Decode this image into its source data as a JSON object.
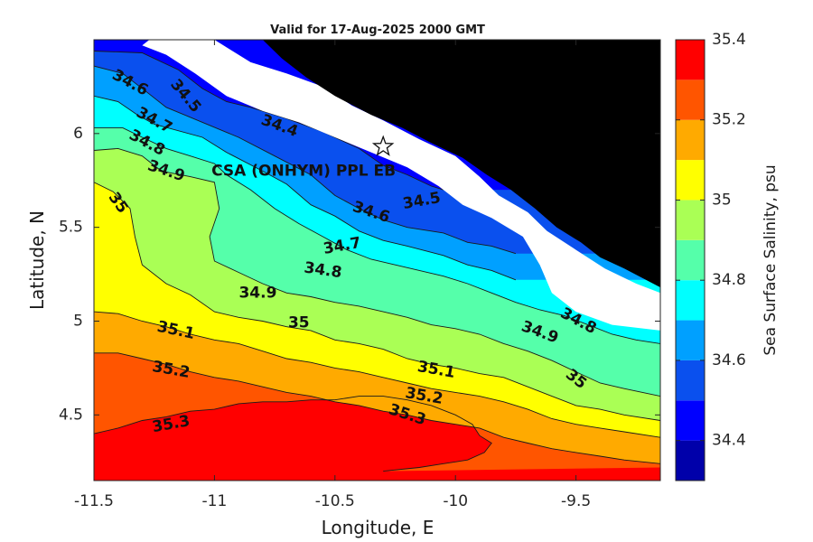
{
  "chart_data": {
    "type": "heatmap",
    "title": "Valid for 17-Aug-2025 2000 GMT",
    "xlabel": "Longitude, E",
    "ylabel": "Latitude, N",
    "xlim": [
      -11.5,
      -9.15
    ],
    "ylim": [
      4.15,
      6.5
    ],
    "x_ticks": [
      -11.5,
      -11,
      -10.5,
      -10,
      -9.5
    ],
    "y_ticks": [
      4.5,
      5,
      5.5,
      6
    ],
    "x_tick_labels": [
      "-11.5",
      "-11",
      "-10.5",
      "-10",
      "-9.5"
    ],
    "y_tick_labels": [
      "4.5",
      "5",
      "5.5",
      "6"
    ],
    "grid": false,
    "colorbar": {
      "label": "Sea Surface Salinity, psu",
      "levels": [
        34.3,
        34.4,
        34.5,
        34.6,
        34.7,
        34.8,
        34.9,
        35.0,
        35.1,
        35.2,
        35.3,
        35.4
      ],
      "tick_values": [
        34.4,
        34.6,
        34.8,
        35.0,
        35.2,
        35.4
      ],
      "tick_labels": [
        "34.4",
        "34.6",
        "34.8",
        "35",
        "35.2",
        "35.4"
      ],
      "colors": [
        "#0000aa",
        "#0000ff",
        "#0a50ee",
        "#00a0ff",
        "#00ffff",
        "#55ffaa",
        "#aaff55",
        "#ffff00",
        "#ffaa00",
        "#ff5500",
        "#ff0000"
      ]
    },
    "land_color": "#000000",
    "nodata_color": "#ffffff",
    "isolines": [
      {
        "level": 34.5,
        "label": "34.5",
        "points": [
          [
            -11.5,
            6.44
          ],
          [
            -11.3,
            6.43
          ],
          [
            -11.15,
            6.34
          ],
          [
            -11.05,
            6.24
          ],
          [
            -10.95,
            6.17
          ],
          [
            -10.85,
            6.14
          ],
          [
            -10.7,
            6.08
          ],
          [
            -10.55,
            6.01
          ],
          [
            -10.4,
            5.92
          ],
          [
            -10.3,
            5.83
          ],
          [
            -10.2,
            5.78
          ],
          [
            -10.1,
            5.72
          ],
          [
            -10.05,
            5.7
          ]
        ]
      },
      {
        "level": 34.6,
        "label": "34.6",
        "points": [
          [
            -11.5,
            6.36
          ],
          [
            -11.38,
            6.32
          ],
          [
            -11.27,
            6.21
          ],
          [
            -11.2,
            6.14
          ],
          [
            -11.05,
            6.06
          ],
          [
            -10.9,
            5.98
          ],
          [
            -10.75,
            5.88
          ],
          [
            -10.6,
            5.78
          ],
          [
            -10.5,
            5.67
          ],
          [
            -10.4,
            5.6
          ],
          [
            -10.3,
            5.54
          ],
          [
            -10.2,
            5.5
          ],
          [
            -10.05,
            5.47
          ],
          [
            -9.95,
            5.42
          ],
          [
            -9.85,
            5.4
          ],
          [
            -9.75,
            5.36
          ]
        ]
      },
      {
        "level": 34.7,
        "label": "34.7",
        "points": [
          [
            -11.5,
            6.2
          ],
          [
            -11.4,
            6.17
          ],
          [
            -11.32,
            6.1
          ],
          [
            -11.25,
            6.05
          ],
          [
            -11.05,
            5.98
          ],
          [
            -10.95,
            5.9
          ],
          [
            -10.8,
            5.8
          ],
          [
            -10.7,
            5.73
          ],
          [
            -10.6,
            5.62
          ],
          [
            -10.5,
            5.56
          ],
          [
            -10.4,
            5.48
          ],
          [
            -10.3,
            5.43
          ],
          [
            -10.2,
            5.4
          ],
          [
            -10.05,
            5.35
          ],
          [
            -9.95,
            5.3
          ],
          [
            -9.85,
            5.27
          ],
          [
            -9.75,
            5.22
          ]
        ]
      },
      {
        "level": 34.8,
        "label": "34.8",
        "points": [
          [
            -11.5,
            6.03
          ],
          [
            -11.38,
            6.03
          ],
          [
            -11.3,
            5.98
          ],
          [
            -11.2,
            5.92
          ],
          [
            -11.1,
            5.88
          ],
          [
            -11.0,
            5.84
          ],
          [
            -10.95,
            5.78
          ],
          [
            -10.85,
            5.7
          ],
          [
            -10.75,
            5.6
          ],
          [
            -10.65,
            5.52
          ],
          [
            -10.55,
            5.45
          ],
          [
            -10.45,
            5.38
          ],
          [
            -10.35,
            5.33
          ],
          [
            -10.25,
            5.3
          ],
          [
            -10.15,
            5.27
          ],
          [
            -10.05,
            5.24
          ],
          [
            -9.95,
            5.2
          ],
          [
            -9.85,
            5.15
          ],
          [
            -9.75,
            5.1
          ],
          [
            -9.65,
            5.06
          ],
          [
            -9.55,
            5.03
          ],
          [
            -9.45,
            4.98
          ],
          [
            -9.35,
            4.93
          ],
          [
            -9.25,
            4.9
          ],
          [
            -9.15,
            4.88
          ]
        ]
      },
      {
        "level": 34.9,
        "label": "34.9",
        "points": [
          [
            -11.5,
            5.91
          ],
          [
            -11.4,
            5.92
          ],
          [
            -11.3,
            5.88
          ],
          [
            -11.22,
            5.8
          ],
          [
            -11.1,
            5.77
          ],
          [
            -11.0,
            5.74
          ],
          [
            -10.98,
            5.6
          ],
          [
            -11.02,
            5.45
          ],
          [
            -11.0,
            5.32
          ],
          [
            -10.9,
            5.26
          ],
          [
            -10.8,
            5.2
          ],
          [
            -10.7,
            5.15
          ],
          [
            -10.6,
            5.13
          ],
          [
            -10.5,
            5.1
          ],
          [
            -10.4,
            5.08
          ],
          [
            -10.3,
            5.05
          ],
          [
            -10.2,
            5.02
          ],
          [
            -10.1,
            4.98
          ],
          [
            -10.0,
            4.96
          ],
          [
            -9.9,
            4.93
          ],
          [
            -9.8,
            4.88
          ],
          [
            -9.7,
            4.84
          ],
          [
            -9.6,
            4.79
          ],
          [
            -9.5,
            4.73
          ],
          [
            -9.4,
            4.67
          ],
          [
            -9.3,
            4.64
          ],
          [
            -9.15,
            4.6
          ]
        ]
      },
      {
        "level": 35.0,
        "label": "35",
        "points": [
          [
            -11.5,
            5.74
          ],
          [
            -11.42,
            5.69
          ],
          [
            -11.35,
            5.6
          ],
          [
            -11.33,
            5.45
          ],
          [
            -11.3,
            5.3
          ],
          [
            -11.2,
            5.2
          ],
          [
            -11.1,
            5.14
          ],
          [
            -11.0,
            5.05
          ],
          [
            -10.9,
            5.02
          ],
          [
            -10.8,
            5.0
          ],
          [
            -10.7,
            4.97
          ],
          [
            -10.6,
            4.95
          ],
          [
            -10.5,
            4.9
          ],
          [
            -10.4,
            4.88
          ],
          [
            -10.3,
            4.85
          ],
          [
            -10.2,
            4.8
          ],
          [
            -10.1,
            4.77
          ],
          [
            -10.0,
            4.75
          ],
          [
            -9.9,
            4.72
          ],
          [
            -9.8,
            4.7
          ],
          [
            -9.7,
            4.65
          ],
          [
            -9.6,
            4.6
          ],
          [
            -9.5,
            4.55
          ],
          [
            -9.4,
            4.53
          ],
          [
            -9.3,
            4.5
          ],
          [
            -9.15,
            4.47
          ]
        ]
      },
      {
        "level": 35.1,
        "label": "35.1",
        "points": [
          [
            -11.5,
            5.05
          ],
          [
            -11.4,
            5.04
          ],
          [
            -11.3,
            5.0
          ],
          [
            -11.2,
            4.97
          ],
          [
            -11.1,
            4.93
          ],
          [
            -11.0,
            4.9
          ],
          [
            -10.9,
            4.88
          ],
          [
            -10.8,
            4.84
          ],
          [
            -10.7,
            4.8
          ],
          [
            -10.6,
            4.78
          ],
          [
            -10.5,
            4.75
          ],
          [
            -10.4,
            4.73
          ],
          [
            -10.3,
            4.7
          ],
          [
            -10.2,
            4.67
          ],
          [
            -10.1,
            4.64
          ],
          [
            -10.0,
            4.62
          ],
          [
            -9.9,
            4.6
          ],
          [
            -9.8,
            4.57
          ],
          [
            -9.7,
            4.53
          ],
          [
            -9.6,
            4.48
          ],
          [
            -9.5,
            4.45
          ],
          [
            -9.4,
            4.43
          ],
          [
            -9.3,
            4.41
          ],
          [
            -9.15,
            4.38
          ]
        ]
      },
      {
        "level": 35.2,
        "label": "35.2",
        "points": [
          [
            -11.5,
            4.83
          ],
          [
            -11.4,
            4.83
          ],
          [
            -11.3,
            4.8
          ],
          [
            -11.2,
            4.77
          ],
          [
            -11.1,
            4.73
          ],
          [
            -11.0,
            4.7
          ],
          [
            -10.9,
            4.68
          ],
          [
            -10.8,
            4.65
          ],
          [
            -10.7,
            4.62
          ],
          [
            -10.6,
            4.6
          ],
          [
            -10.5,
            4.57
          ],
          [
            -10.4,
            4.55
          ],
          [
            -10.3,
            4.52
          ],
          [
            -10.2,
            4.5
          ],
          [
            -10.1,
            4.47
          ],
          [
            -10.0,
            4.45
          ],
          [
            -9.9,
            4.43
          ],
          [
            -9.8,
            4.38
          ],
          [
            -9.7,
            4.35
          ],
          [
            -9.6,
            4.32
          ],
          [
            -9.5,
            4.3
          ],
          [
            -9.4,
            4.28
          ],
          [
            -9.3,
            4.26
          ],
          [
            -9.15,
            4.24
          ]
        ]
      },
      {
        "level": 35.3,
        "label": "35.3",
        "points": [
          [
            -11.5,
            4.4
          ],
          [
            -11.4,
            4.43
          ],
          [
            -11.3,
            4.47
          ],
          [
            -11.2,
            4.49
          ],
          [
            -11.1,
            4.52
          ],
          [
            -11.0,
            4.53
          ],
          [
            -10.9,
            4.56
          ],
          [
            -10.8,
            4.57
          ],
          [
            -10.7,
            4.57
          ],
          [
            -10.6,
            4.58
          ],
          [
            -10.5,
            4.58
          ],
          [
            -10.4,
            4.6
          ],
          [
            -10.3,
            4.6
          ],
          [
            -10.2,
            4.58
          ],
          [
            -10.1,
            4.55
          ],
          [
            -10.0,
            4.5
          ],
          [
            -9.93,
            4.45
          ],
          [
            -9.9,
            4.39
          ],
          [
            -9.85,
            4.35
          ],
          [
            -9.88,
            4.3
          ],
          [
            -9.95,
            4.26
          ],
          [
            -10.05,
            4.24
          ],
          [
            -10.15,
            4.22
          ],
          [
            -10.3,
            4.2
          ]
        ]
      }
    ],
    "contour_labels": [
      {
        "text": "34.6",
        "x": -11.35,
        "y": 6.27,
        "rotation": 28
      },
      {
        "text": "34.5",
        "x": -11.12,
        "y": 6.2,
        "rotation": 50
      },
      {
        "text": "34.7",
        "x": -11.25,
        "y": 6.07,
        "rotation": 28
      },
      {
        "text": "34.8",
        "x": -11.28,
        "y": 5.95,
        "rotation": 28
      },
      {
        "text": "34.4",
        "x": -10.73,
        "y": 6.04,
        "rotation": 20
      },
      {
        "text": "34.9",
        "x": -11.2,
        "y": 5.8,
        "rotation": 18
      },
      {
        "text": "35",
        "x": -11.4,
        "y": 5.63,
        "rotation": 55
      },
      {
        "text": "34.6",
        "x": -10.35,
        "y": 5.58,
        "rotation": 18
      },
      {
        "text": "34.5",
        "x": -10.14,
        "y": 5.64,
        "rotation": -10
      },
      {
        "text": "34.7",
        "x": -10.47,
        "y": 5.4,
        "rotation": -10
      },
      {
        "text": "34.8",
        "x": -10.55,
        "y": 5.27,
        "rotation": 8
      },
      {
        "text": "34.9",
        "x": -10.82,
        "y": 5.15,
        "rotation": 0
      },
      {
        "text": "35",
        "x": -10.65,
        "y": 4.99,
        "rotation": 0
      },
      {
        "text": "34.8",
        "x": -9.49,
        "y": 5.0,
        "rotation": 28
      },
      {
        "text": "34.9",
        "x": -9.65,
        "y": 4.94,
        "rotation": 20
      },
      {
        "text": "35",
        "x": -9.5,
        "y": 4.69,
        "rotation": 38
      },
      {
        "text": "35.1",
        "x": -11.16,
        "y": 4.95,
        "rotation": 12
      },
      {
        "text": "35.1",
        "x": -10.08,
        "y": 4.74,
        "rotation": 10
      },
      {
        "text": "35.2",
        "x": -11.18,
        "y": 4.74,
        "rotation": 10
      },
      {
        "text": "35.2",
        "x": -10.13,
        "y": 4.6,
        "rotation": 10
      },
      {
        "text": "35.3",
        "x": -11.18,
        "y": 4.45,
        "rotation": -10
      },
      {
        "text": "35.3",
        "x": -10.2,
        "y": 4.5,
        "rotation": 18
      }
    ],
    "annotations": [
      {
        "text": "CSA (ONHYM) PPL EB",
        "x": -10.63,
        "y": 5.8,
        "marker": "star",
        "marker_x": -10.3,
        "marker_y": 5.93
      }
    ]
  }
}
